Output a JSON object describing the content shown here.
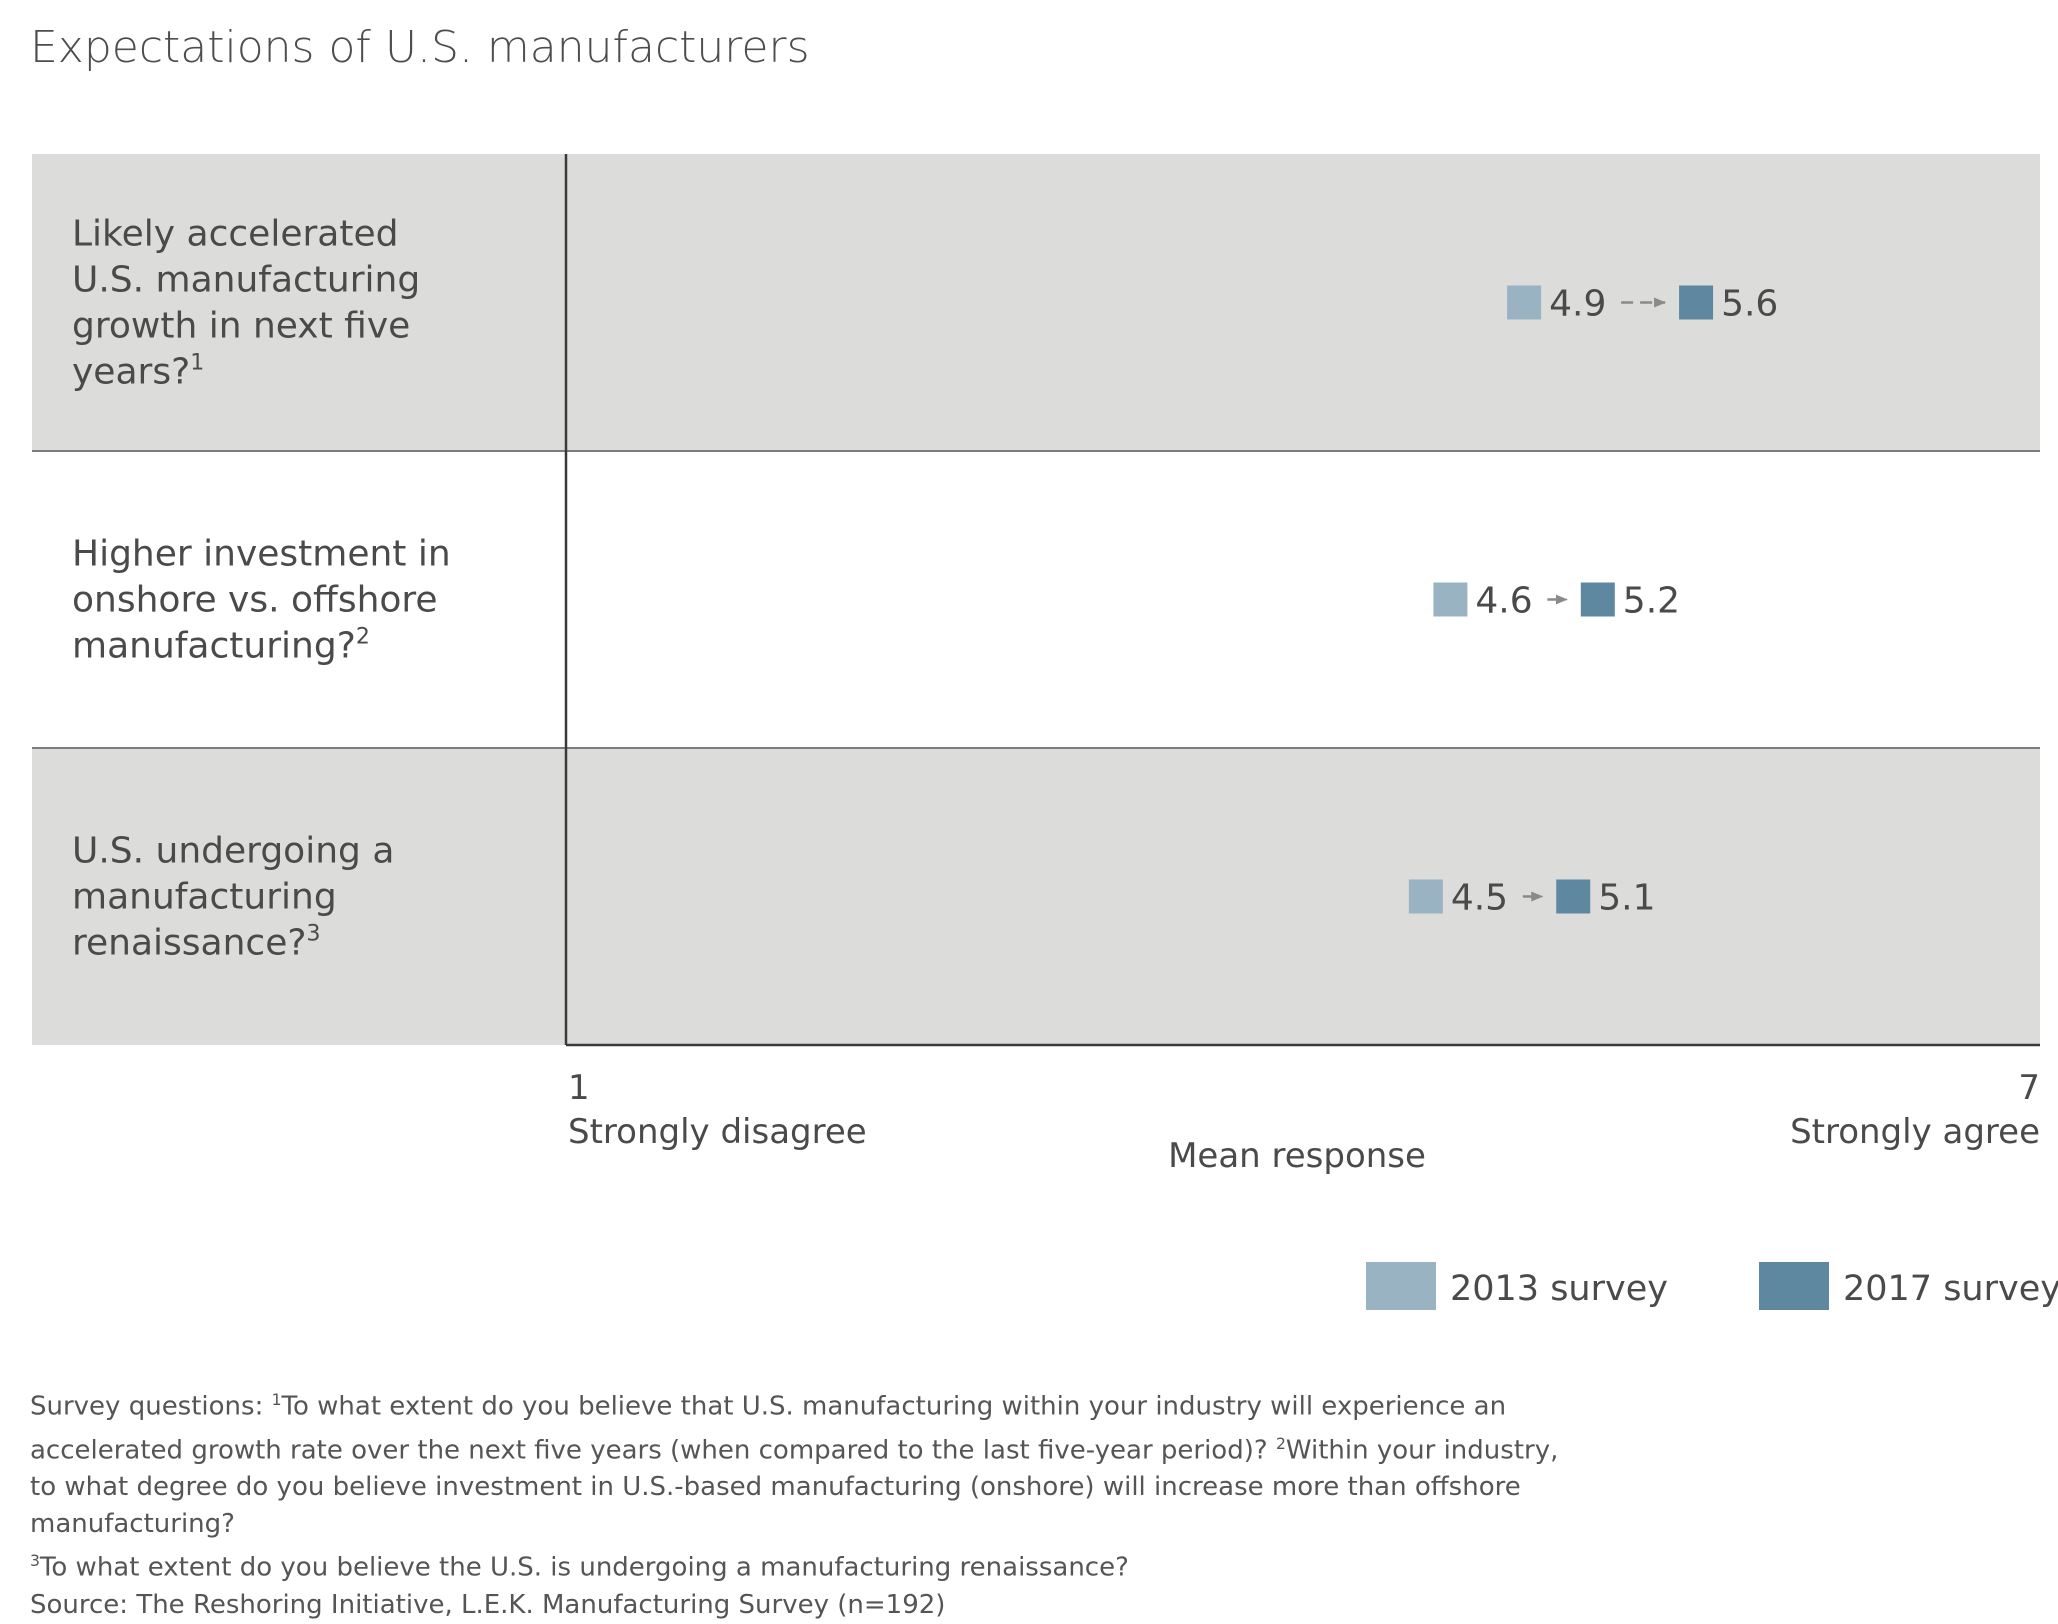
{
  "chart_data": {
    "type": "dot-arrow",
    "title": "Expectations of U.S. manufacturers",
    "xlabel": "Mean response",
    "xlim": [
      1,
      7
    ],
    "axis_ends": {
      "min": {
        "value": "1",
        "label": "Strongly disagree"
      },
      "max": {
        "value": "7",
        "label": "Strongly agree"
      }
    },
    "series": [
      {
        "name": "2013 survey",
        "color": "#9ab3c3"
      },
      {
        "name": "2017 survey",
        "color": "#5e88a0"
      }
    ],
    "rows": [
      {
        "question": "Likely accelerated U.S. manufacturing growth in next five years?",
        "note": "1",
        "values": [
          4.9,
          5.6
        ],
        "labels": [
          "4.9",
          "5.6"
        ]
      },
      {
        "question": "Higher investment in onshore vs. offshore manufacturing?",
        "note": "2",
        "values": [
          4.6,
          5.2
        ],
        "labels": [
          "4.6",
          "5.2"
        ]
      },
      {
        "question": "U.S. undergoing a manufacturing renaissance?",
        "note": "3",
        "values": [
          4.5,
          5.1
        ],
        "labels": [
          "4.5",
          "5.1"
        ]
      }
    ],
    "band_color": "#dcdcdb",
    "arrow_color": "#8a8a8a"
  },
  "footnote": {
    "lead": "Survey questions: ",
    "q1_mark": "1",
    "q1": "To what extent do you believe that U.S. manufacturing within your industry will experience an accelerated growth rate over the next five years (when compared to the last five-year period)? ",
    "q2_mark": "2",
    "q2": "Within your industry, to what degree do you believe investment in U.S.-based manufacturing (onshore) will increase more than offshore manufacturing?",
    "q3_mark": "3",
    "q3": "To what extent do you believe the U.S. is undergoing a manufacturing renaissance?",
    "source": "Source: The Reshoring Initiative, L.E.K. Manufacturing Survey (n=192)"
  }
}
